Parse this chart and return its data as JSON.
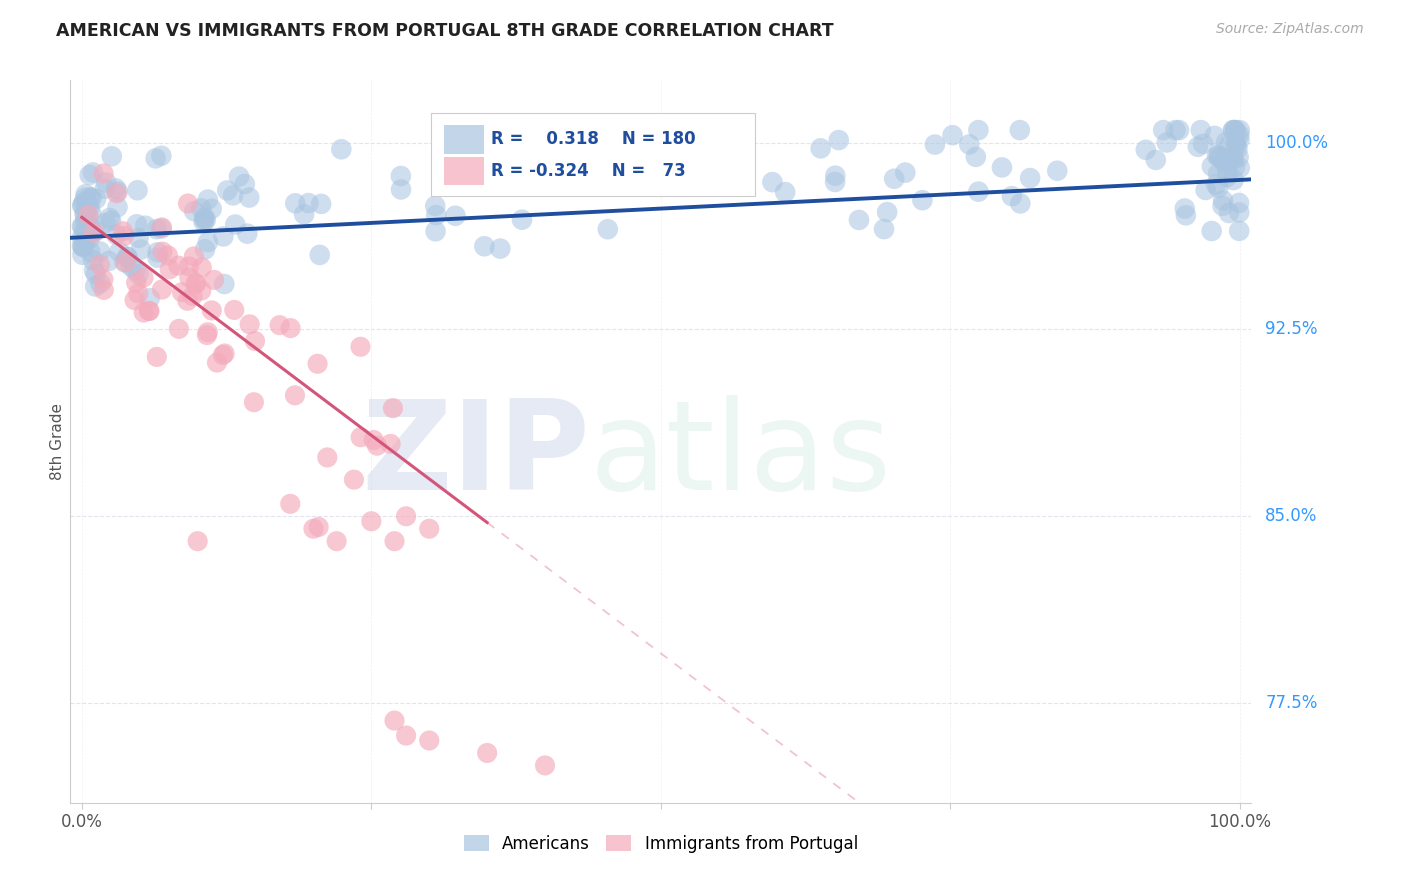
{
  "title": "AMERICAN VS IMMIGRANTS FROM PORTUGAL 8TH GRADE CORRELATION CHART",
  "source": "Source: ZipAtlas.com",
  "ylabel": "8th Grade",
  "ytick_labels": [
    "100.0%",
    "92.5%",
    "85.0%",
    "77.5%"
  ],
  "ytick_values": [
    1.0,
    0.925,
    0.85,
    0.775
  ],
  "ymin": 0.735,
  "ymax": 1.025,
  "xmin": -0.01,
  "xmax": 1.01,
  "americans_R": 0.318,
  "americans_N": 180,
  "portugal_R": -0.324,
  "portugal_N": 73,
  "blue_scatter_color": "#A8C4E0",
  "pink_scatter_color": "#F4AABB",
  "blue_line_color": "#1F4E9E",
  "pink_line_color": "#D4557A",
  "grid_color": "#DDDDEE",
  "title_color": "#222222",
  "right_label_color": "#3399FF",
  "legend_blue_color": "#1F4E9E",
  "legend_pink_color": "#D4557A",
  "background": "#FFFFFF",
  "watermark_zip_color": "#AABBDD",
  "watermark_atlas_color": "#AADDCC"
}
